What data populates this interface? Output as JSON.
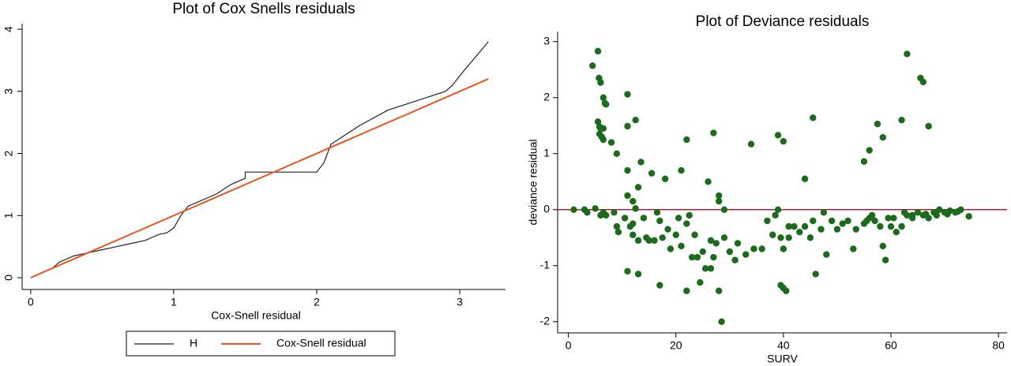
{
  "chart_data": [
    {
      "type": "line",
      "title": "Plot of Cox Snells residuals",
      "x_label": "Cox-Snell residual",
      "xlim": [
        -0.06,
        3.32
      ],
      "ylim": [
        -0.19,
        4.09
      ],
      "xticks": [
        0,
        1,
        2,
        3
      ],
      "yticks": [
        0,
        1,
        2,
        3,
        4
      ],
      "legend": "bottom",
      "series": [
        {
          "name": "H",
          "color": "#222222",
          "x": [
            0,
            0.1,
            0.15,
            0.2,
            0.3,
            0.4,
            0.5,
            0.6,
            0.7,
            0.8,
            0.9,
            0.95,
            1.0,
            1.05,
            1.1,
            1.2,
            1.3,
            1.4,
            1.5,
            1.5,
            1.6,
            1.8,
            2.0,
            2.05,
            2.1,
            2.2,
            2.3,
            2.5,
            2.7,
            2.9,
            2.95,
            3.0,
            3.2
          ],
          "values": [
            0,
            0.1,
            0.15,
            0.25,
            0.35,
            0.4,
            0.45,
            0.5,
            0.55,
            0.6,
            0.7,
            0.72,
            0.8,
            1.0,
            1.15,
            1.25,
            1.35,
            1.5,
            1.6,
            1.7,
            1.7,
            1.7,
            1.7,
            1.85,
            2.15,
            2.3,
            2.45,
            2.7,
            2.85,
            3.0,
            3.1,
            3.25,
            3.8
          ]
        },
        {
          "name": "Cox-Snell residual",
          "color": "#e8561e",
          "x": [
            0,
            3.2
          ],
          "values": [
            0,
            3.2
          ]
        }
      ]
    },
    {
      "type": "scatter",
      "title": "Plot of Deviance residuals",
      "x_label": "SURV",
      "y_label": "deviance residual",
      "xlim": [
        -2,
        81.6
      ],
      "ylim": [
        -2.2,
        3.18
      ],
      "xticks": [
        0,
        20,
        40,
        60,
        80
      ],
      "yticks": [
        -2,
        -1,
        0,
        1,
        2,
        3
      ],
      "color": "#1c6b1c",
      "reference_line": {
        "value": 0,
        "color": "#b3203c"
      },
      "x": [
        4.5,
        5.5,
        5.7,
        6,
        6.5,
        6.8,
        7,
        11,
        5.5,
        5.8,
        6,
        6.5,
        5.8,
        6.2,
        6.5,
        8,
        11,
        12.5,
        9,
        11,
        13.5,
        15.5,
        11,
        12,
        13,
        18,
        21,
        22,
        27,
        26,
        28,
        28,
        34,
        39,
        40,
        45.5,
        44,
        55,
        56,
        57.5,
        58.5,
        62,
        63,
        65.5,
        66,
        67,
        1,
        3,
        3.5,
        5,
        6,
        6.5,
        7,
        8.5,
        9,
        9.3,
        10.5,
        11.5,
        12,
        12.5,
        13,
        14,
        14.5,
        15,
        16,
        16.5,
        17,
        17.5,
        18.5,
        19,
        20,
        20.5,
        21,
        22,
        22.5,
        23,
        23.5,
        24,
        25,
        25.5,
        26.5,
        27,
        27.5,
        28,
        28.5,
        29,
        30,
        31,
        31.5,
        33,
        34.5,
        36,
        37,
        38,
        38.5,
        39,
        39.5,
        40,
        40,
        39.5,
        40.5,
        41,
        42,
        43,
        44,
        45,
        45.5,
        46,
        47,
        47.5,
        48,
        49,
        50,
        52,
        53,
        53.5,
        55,
        56,
        57,
        58,
        58.5,
        59,
        59.5,
        60,
        61,
        62,
        63,
        64,
        65,
        66,
        67,
        68,
        69,
        70,
        71,
        72,
        73,
        74.5,
        11,
        13,
        17,
        22,
        24.5,
        26.5,
        29,
        41,
        12,
        56.5,
        60.5,
        64,
        66.5,
        68.5,
        70.5,
        72.5,
        62.5,
        55.5,
        51
      ],
      "values": [
        2.57,
        2.83,
        2.35,
        2.27,
        2.0,
        1.9,
        1.88,
        2.06,
        1.57,
        1.48,
        1.45,
        1.45,
        1.35,
        1.3,
        1.25,
        1.2,
        1.49,
        1.6,
        1.0,
        0.7,
        0.85,
        0.65,
        0.25,
        0.15,
        0.4,
        0.55,
        0.7,
        1.25,
        1.37,
        0.5,
        0.25,
        0.15,
        1.17,
        1.33,
        1.22,
        1.64,
        0.55,
        0.86,
        1.06,
        1.53,
        1.29,
        1.6,
        2.78,
        2.35,
        2.28,
        1.49,
        0,
        0,
        -0.05,
        0.02,
        -0.1,
        -0.05,
        -0.1,
        -0.05,
        -0.3,
        -0.4,
        -0.15,
        -0.3,
        -0.45,
        0.02,
        -0.55,
        -0.15,
        -0.5,
        -0.55,
        -0.55,
        -0.05,
        -0.2,
        -0.5,
        -0.35,
        -0.7,
        -0.45,
        -0.15,
        -0.65,
        -0.25,
        -0.1,
        -0.85,
        -0.45,
        -0.85,
        -0.75,
        -1.05,
        -0.55,
        -0.85,
        -0.6,
        -1.45,
        -2.0,
        -0.5,
        -0.75,
        -0.9,
        -0.6,
        -0.8,
        -0.7,
        -0.7,
        -0.2,
        -0.45,
        -0.1,
        0,
        -0.5,
        -0.7,
        -1.4,
        -1.35,
        -1.45,
        -0.5,
        -0.3,
        -0.4,
        -0.3,
        -0.5,
        -0.2,
        -1.15,
        -0.35,
        -0.05,
        -0.8,
        -0.2,
        -0.35,
        -0.2,
        -0.7,
        -0.35,
        -0.25,
        -0.15,
        -0.2,
        -0.3,
        -0.65,
        -0.9,
        -0.15,
        -0.3,
        -0.4,
        -0.3,
        -0.1,
        -0.15,
        -0.05,
        -0.1,
        -0.15,
        -0.05,
        0,
        -0.05,
        -0.02,
        -0.05,
        0,
        -0.12,
        -1.1,
        -1.15,
        -1.35,
        -1.45,
        -1.3,
        -1.05,
        0.0,
        -0.3,
        -0.25,
        -0.1,
        -0.15,
        -0.1,
        -0.08,
        -0.1,
        -0.08,
        -0.03,
        -0.05,
        -0.2,
        -0.25
      ]
    }
  ]
}
